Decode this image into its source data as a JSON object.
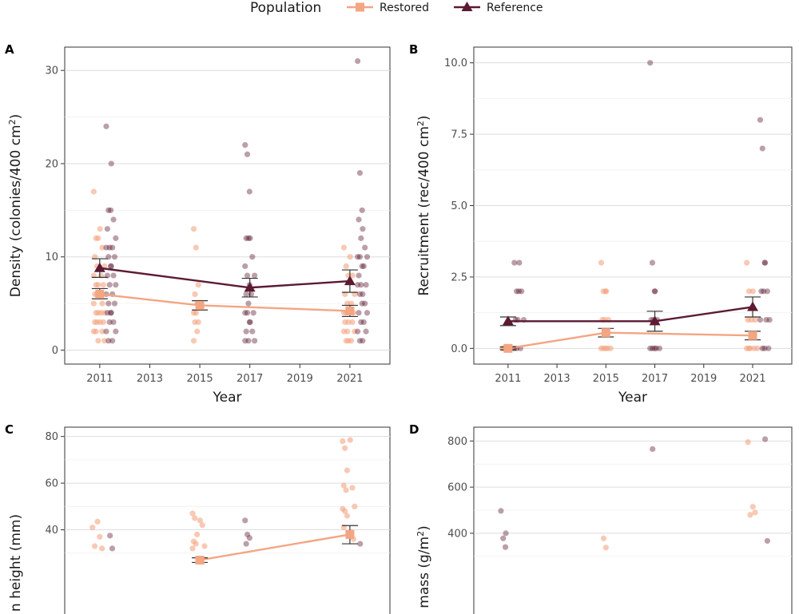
{
  "legend": {
    "title": "Population",
    "items": [
      {
        "label": "Restored",
        "color": "#f4a582",
        "shape": "square"
      },
      {
        "label": "Reference",
        "color": "#5c1a33",
        "shape": "triangle"
      }
    ]
  },
  "chart_data": [
    {
      "type": "scatter",
      "panel": "A",
      "title": "",
      "xlabel": "Year",
      "ylabel_main": "Density (colonies/400 cm",
      "ylabel_sup": "2",
      "ylabel_end": ")",
      "xlim": [
        2009.6,
        2022.6
      ],
      "ylim": [
        -1.5,
        32.5
      ],
      "xticks": [
        2011,
        2013,
        2015,
        2017,
        2019,
        2021
      ],
      "yticks": [
        0,
        10,
        20,
        30
      ],
      "ytick_labels": [
        "0",
        "10",
        "20",
        "30"
      ],
      "series": [
        {
          "name": "Restored",
          "means": [
            {
              "x": 2011,
              "y": 6.0,
              "lo": 5.5,
              "hi": 6.6
            },
            {
              "x": 2015,
              "y": 4.8,
              "lo": 4.3,
              "hi": 5.3
            },
            {
              "x": 2021,
              "y": 4.2,
              "lo": 3.6,
              "hi": 4.8
            }
          ],
          "points": [
            {
              "x": 2010.85,
              "ys": [
                17,
                12,
                12,
                10,
                9,
                8,
                7,
                7,
                6,
                6,
                5,
                4,
                4,
                3,
                3,
                2,
                2,
                1
              ]
            },
            {
              "x": 2011.1,
              "ys": [
                13,
                11,
                9,
                8,
                7,
                6,
                5,
                4,
                4,
                3,
                3,
                2,
                1
              ]
            },
            {
              "x": 2014.85,
              "ys": [
                13,
                11,
                7,
                6,
                5,
                4,
                4,
                3,
                3,
                2,
                1
              ]
            },
            {
              "x": 2020.85,
              "ys": [
                11,
                9,
                8,
                6,
                5,
                4,
                4,
                3,
                3,
                2,
                2,
                1,
                1
              ]
            },
            {
              "x": 2021.1,
              "ys": [
                10,
                8,
                6,
                5,
                4,
                4,
                3,
                2,
                1
              ]
            }
          ]
        },
        {
          "name": "Reference",
          "means": [
            {
              "x": 2011,
              "y": 8.8,
              "lo": 7.8,
              "hi": 9.8
            },
            {
              "x": 2017,
              "y": 6.7,
              "lo": 5.7,
              "hi": 7.7
            },
            {
              "x": 2021,
              "y": 7.4,
              "lo": 6.2,
              "hi": 8.6
            }
          ],
          "points": [
            {
              "x": 2011.35,
              "ys": [
                24,
                15,
                15,
                13,
                11,
                11,
                10,
                9,
                8,
                7,
                6,
                5,
                4,
                4,
                3,
                2,
                1
              ]
            },
            {
              "x": 2011.55,
              "ys": [
                20,
                14,
                12,
                11,
                10,
                9,
                8,
                7,
                6,
                5,
                4,
                3,
                2,
                1
              ]
            },
            {
              "x": 2016.9,
              "ys": [
                22,
                21,
                17,
                12,
                12,
                9,
                8,
                7,
                6,
                5,
                4,
                4,
                3,
                2,
                1,
                1
              ]
            },
            {
              "x": 2017.1,
              "ys": [
                12,
                10,
                8,
                6,
                4,
                3,
                2,
                1
              ]
            },
            {
              "x": 2021.4,
              "ys": [
                31,
                19,
                15,
                14,
                12,
                10,
                10,
                9,
                8,
                7,
                7,
                6,
                5,
                4,
                3,
                2,
                1
              ]
            },
            {
              "x": 2021.6,
              "ys": [
                13,
                11,
                10,
                9,
                7,
                6,
                5,
                4,
                3,
                2,
                1
              ]
            }
          ]
        }
      ]
    },
    {
      "type": "scatter",
      "panel": "B",
      "title": "",
      "xlabel": "Year",
      "ylabel_main": "Recruitment (rec/400 cm",
      "ylabel_sup": "2",
      "ylabel_end": ")",
      "xlim": [
        2009.6,
        2022.6
      ],
      "ylim": [
        -0.55,
        10.55
      ],
      "xticks": [
        2011,
        2013,
        2015,
        2017,
        2019,
        2021
      ],
      "yticks": [
        0,
        2.5,
        5,
        7.5,
        10
      ],
      "ytick_labels": [
        "0.0",
        "2.5",
        "5.0",
        "7.5",
        "10.0"
      ],
      "series": [
        {
          "name": "Restored",
          "means": [
            {
              "x": 2011,
              "y": 0.0,
              "lo": -0.05,
              "hi": 0.05
            },
            {
              "x": 2015,
              "y": 0.55,
              "lo": 0.4,
              "hi": 0.7
            },
            {
              "x": 2021,
              "y": 0.45,
              "lo": 0.3,
              "hi": 0.6
            }
          ],
          "points": [
            {
              "x": 2010.85,
              "ys": [
                0,
                0,
                0,
                0,
                0
              ]
            },
            {
              "x": 2011.1,
              "ys": [
                0,
                0,
                0
              ]
            },
            {
              "x": 2014.9,
              "ys": [
                3,
                2,
                2,
                1,
                1,
                0,
                0,
                0
              ]
            },
            {
              "x": 2015.1,
              "ys": [
                2,
                1,
                0,
                0
              ]
            },
            {
              "x": 2020.85,
              "ys": [
                3,
                2,
                1,
                1,
                0,
                0,
                0
              ]
            },
            {
              "x": 2021.1,
              "ys": [
                2,
                1,
                0,
                0
              ]
            }
          ]
        },
        {
          "name": "Reference",
          "means": [
            {
              "x": 2011,
              "y": 0.95,
              "lo": 0.8,
              "hi": 1.1
            },
            {
              "x": 2017,
              "y": 0.95,
              "lo": 0.6,
              "hi": 1.3
            },
            {
              "x": 2021,
              "y": 1.45,
              "lo": 1.1,
              "hi": 1.8
            }
          ],
          "points": [
            {
              "x": 2011.35,
              "ys": [
                3,
                2,
                2,
                1,
                1,
                0,
                0
              ]
            },
            {
              "x": 2011.55,
              "ys": [
                3,
                2,
                1,
                0
              ]
            },
            {
              "x": 2016.9,
              "ys": [
                10,
                3,
                2,
                1,
                1,
                0,
                0,
                0
              ]
            },
            {
              "x": 2017.1,
              "ys": [
                2,
                1,
                0,
                0
              ]
            },
            {
              "x": 2021.4,
              "ys": [
                8,
                7,
                3,
                2,
                2,
                1,
                0,
                0
              ]
            },
            {
              "x": 2021.6,
              "ys": [
                3,
                2,
                1,
                1,
                0
              ]
            }
          ]
        }
      ]
    },
    {
      "type": "scatter",
      "panel": "C",
      "title": "",
      "xlabel": "",
      "ylabel_main": "n height (mm)",
      "ylabel_sup": "",
      "ylabel_end": "",
      "xlim": [
        2009.6,
        2022.6
      ],
      "ylim": [
        -5,
        84
      ],
      "xticks": [],
      "yticks": [
        40,
        60,
        80
      ],
      "ytick_labels": [
        "40",
        "60",
        "80"
      ],
      "series": [
        {
          "name": "Restored",
          "means": [
            {
              "x": 2015,
              "y": 27,
              "lo": 26,
              "hi": 28
            },
            {
              "x": 2021,
              "y": 38,
              "lo": 34,
              "hi": 41.8
            }
          ],
          "points": [
            {
              "x": 2010.8,
              "ys": [
                41,
                33
              ]
            },
            {
              "x": 2011.0,
              "ys": [
                43.5,
                37,
                32
              ]
            },
            {
              "x": 2014.8,
              "ys": [
                47,
                45,
                38,
                35,
                34,
                32
              ]
            },
            {
              "x": 2015.1,
              "ys": [
                44,
                42,
                33
              ]
            },
            {
              "x": 2020.8,
              "ys": [
                78,
                75,
                65.5,
                59,
                57,
                49,
                48,
                46,
                41
              ]
            },
            {
              "x": 2021.1,
              "ys": [
                78.5,
                58,
                50,
                39,
                36
              ]
            }
          ]
        },
        {
          "name": "Reference",
          "means": [],
          "points": [
            {
              "x": 2011.5,
              "ys": [
                37.5,
                32
              ]
            },
            {
              "x": 2016.9,
              "ys": [
                44,
                38,
                36.5,
                34
              ]
            },
            {
              "x": 2021.5,
              "ys": [
                34
              ]
            }
          ]
        }
      ]
    },
    {
      "type": "scatter",
      "panel": "D",
      "title": "",
      "xlabel": "",
      "ylabel_main": "mass (g/m",
      "ylabel_sup": "2",
      "ylabel_end": ")",
      "xlim": [
        2009.6,
        2022.6
      ],
      "ylim": [
        -40,
        860
      ],
      "xticks": [],
      "yticks": [
        400,
        600,
        800
      ],
      "ytick_labels": [
        "400",
        "600",
        "800"
      ],
      "series": [
        {
          "name": "Restored",
          "means": [],
          "points": [
            {
              "x": 2015.0,
              "ys": [
                378,
                338
              ]
            },
            {
              "x": 2020.9,
              "ys": [
                795,
                480
              ]
            },
            {
              "x": 2021.1,
              "ys": [
                515,
                490
              ]
            }
          ]
        },
        {
          "name": "Reference",
          "means": [],
          "points": [
            {
              "x": 2010.8,
              "ys": [
                497,
                378,
                340
              ]
            },
            {
              "x": 2011.0,
              "ys": [
                400
              ]
            },
            {
              "x": 2017.0,
              "ys": [
                765
              ]
            },
            {
              "x": 2021.6,
              "ys": [
                808,
                367
              ]
            }
          ]
        }
      ]
    }
  ]
}
